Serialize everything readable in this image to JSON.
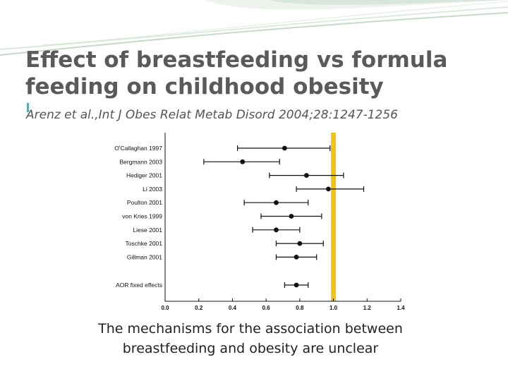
{
  "slide": {
    "title": "Effect of breastfeeding vs formula feeding on childhood obesity",
    "citation": "Arenz et al.,Int J Obes Relat Metab Disord 2004;28:1247-1256",
    "note": "The mechanisms for the association between breastfeeding and obesity are unclear"
  },
  "colors": {
    "reference_line": "#f0c419",
    "accent": "#5fa8b8",
    "text": "#5a5a5a"
  },
  "chart_data": {
    "type": "forest",
    "x_ticks": [
      "0.0",
      "0.2",
      "0.4",
      "0.6",
      "0.8",
      "1.0",
      "1.2",
      "1.4"
    ],
    "xlim": [
      0,
      1.4
    ],
    "reference_value": 1.0,
    "studies": [
      {
        "label": "O'Callaghan 1997",
        "estimate": 0.71,
        "lower": 0.43,
        "upper": 0.98
      },
      {
        "label": "Bergmann 2003",
        "estimate": 0.46,
        "lower": 0.23,
        "upper": 0.68
      },
      {
        "label": "Hediger 2001",
        "estimate": 0.84,
        "lower": 0.62,
        "upper": 1.06
      },
      {
        "label": "Li 2003",
        "estimate": 0.97,
        "lower": 0.78,
        "upper": 1.18
      },
      {
        "label": "Poulton 2001",
        "estimate": 0.66,
        "lower": 0.47,
        "upper": 0.85
      },
      {
        "label": "von Kries 1999",
        "estimate": 0.75,
        "lower": 0.57,
        "upper": 0.93
      },
      {
        "label": "Liese 2001",
        "estimate": 0.66,
        "lower": 0.52,
        "upper": 0.8
      },
      {
        "label": "Toschke 2001",
        "estimate": 0.8,
        "lower": 0.66,
        "upper": 0.94
      },
      {
        "label": "Gillman 2001",
        "estimate": 0.78,
        "lower": 0.66,
        "upper": 0.9
      }
    ],
    "summary": {
      "label": "AOR fixed effects",
      "estimate": 0.78,
      "lower": 0.71,
      "upper": 0.85
    }
  }
}
